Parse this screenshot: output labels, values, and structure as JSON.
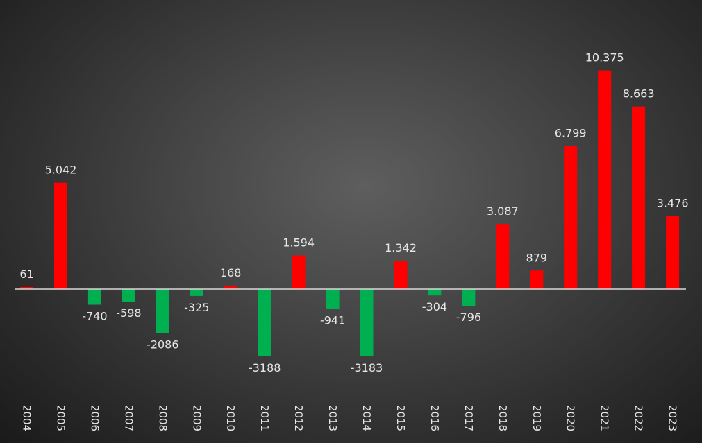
{
  "chart_data": {
    "type": "bar",
    "categories": [
      "2004",
      "2005",
      "2006",
      "2007",
      "2008",
      "2009",
      "2010",
      "2011",
      "2012",
      "2013",
      "2014",
      "2015",
      "2016",
      "2017",
      "2018",
      "2019",
      "2020",
      "2021",
      "2022",
      "2023"
    ],
    "values": [
      61,
      5042,
      -740,
      -598,
      -2086,
      -325,
      168,
      -3188,
      1594,
      -941,
      -3183,
      1342,
      -304,
      -796,
      3087,
      879,
      6799,
      10375,
      8663,
      3476
    ],
    "value_labels": [
      "61",
      "5.042",
      "-740",
      "-598",
      "-2086",
      "-325",
      "168",
      "-3188",
      "1.594",
      "-941",
      "-3183",
      "1.342",
      "-304",
      "-796",
      "3.087",
      "879",
      "6.799",
      "10.375",
      "8.663",
      "3.476"
    ],
    "colors": {
      "positive": "#ff0000",
      "negative": "#00b050",
      "axis_line": "#d9d9d9"
    },
    "ylim": [
      -3500,
      10700
    ],
    "grid": false,
    "legend": "none"
  }
}
